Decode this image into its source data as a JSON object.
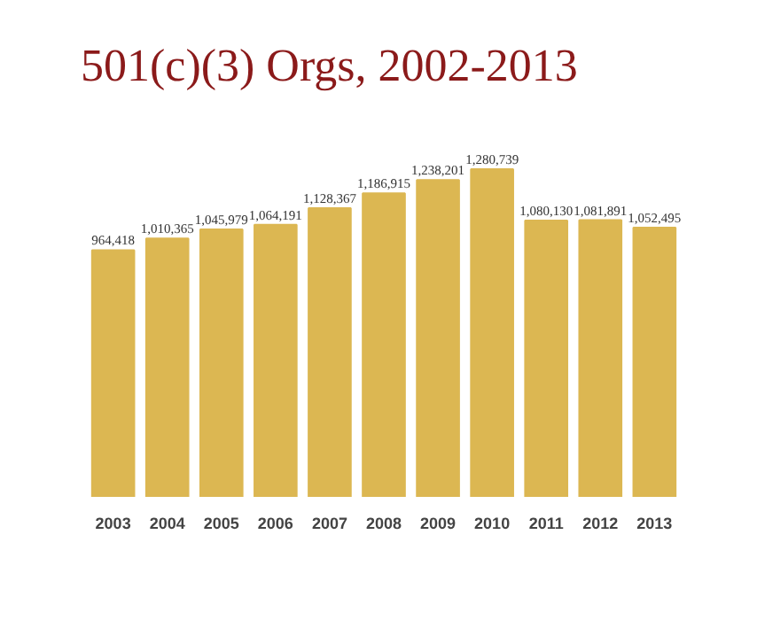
{
  "chart_data": {
    "type": "bar",
    "title": "501(c)(3) Orgs, 2002-2013",
    "categories": [
      "2003",
      "2004",
      "2005",
      "2006",
      "2007",
      "2008",
      "2009",
      "2010",
      "2011",
      "2012",
      "2013"
    ],
    "values": [
      964418,
      1010365,
      1045979,
      1064191,
      1128367,
      1186915,
      1238201,
      1280739,
      1080130,
      1081891,
      1052495
    ],
    "value_labels": [
      "964,418",
      "1,010,365",
      "1,045,979",
      "1,064,191",
      "1,128,367",
      "1,186,915",
      "1,238,201",
      "1,280,739",
      "1,080,130",
      "1,081,891",
      "1,052,495"
    ],
    "color": "#dcb752",
    "grid": false
  }
}
